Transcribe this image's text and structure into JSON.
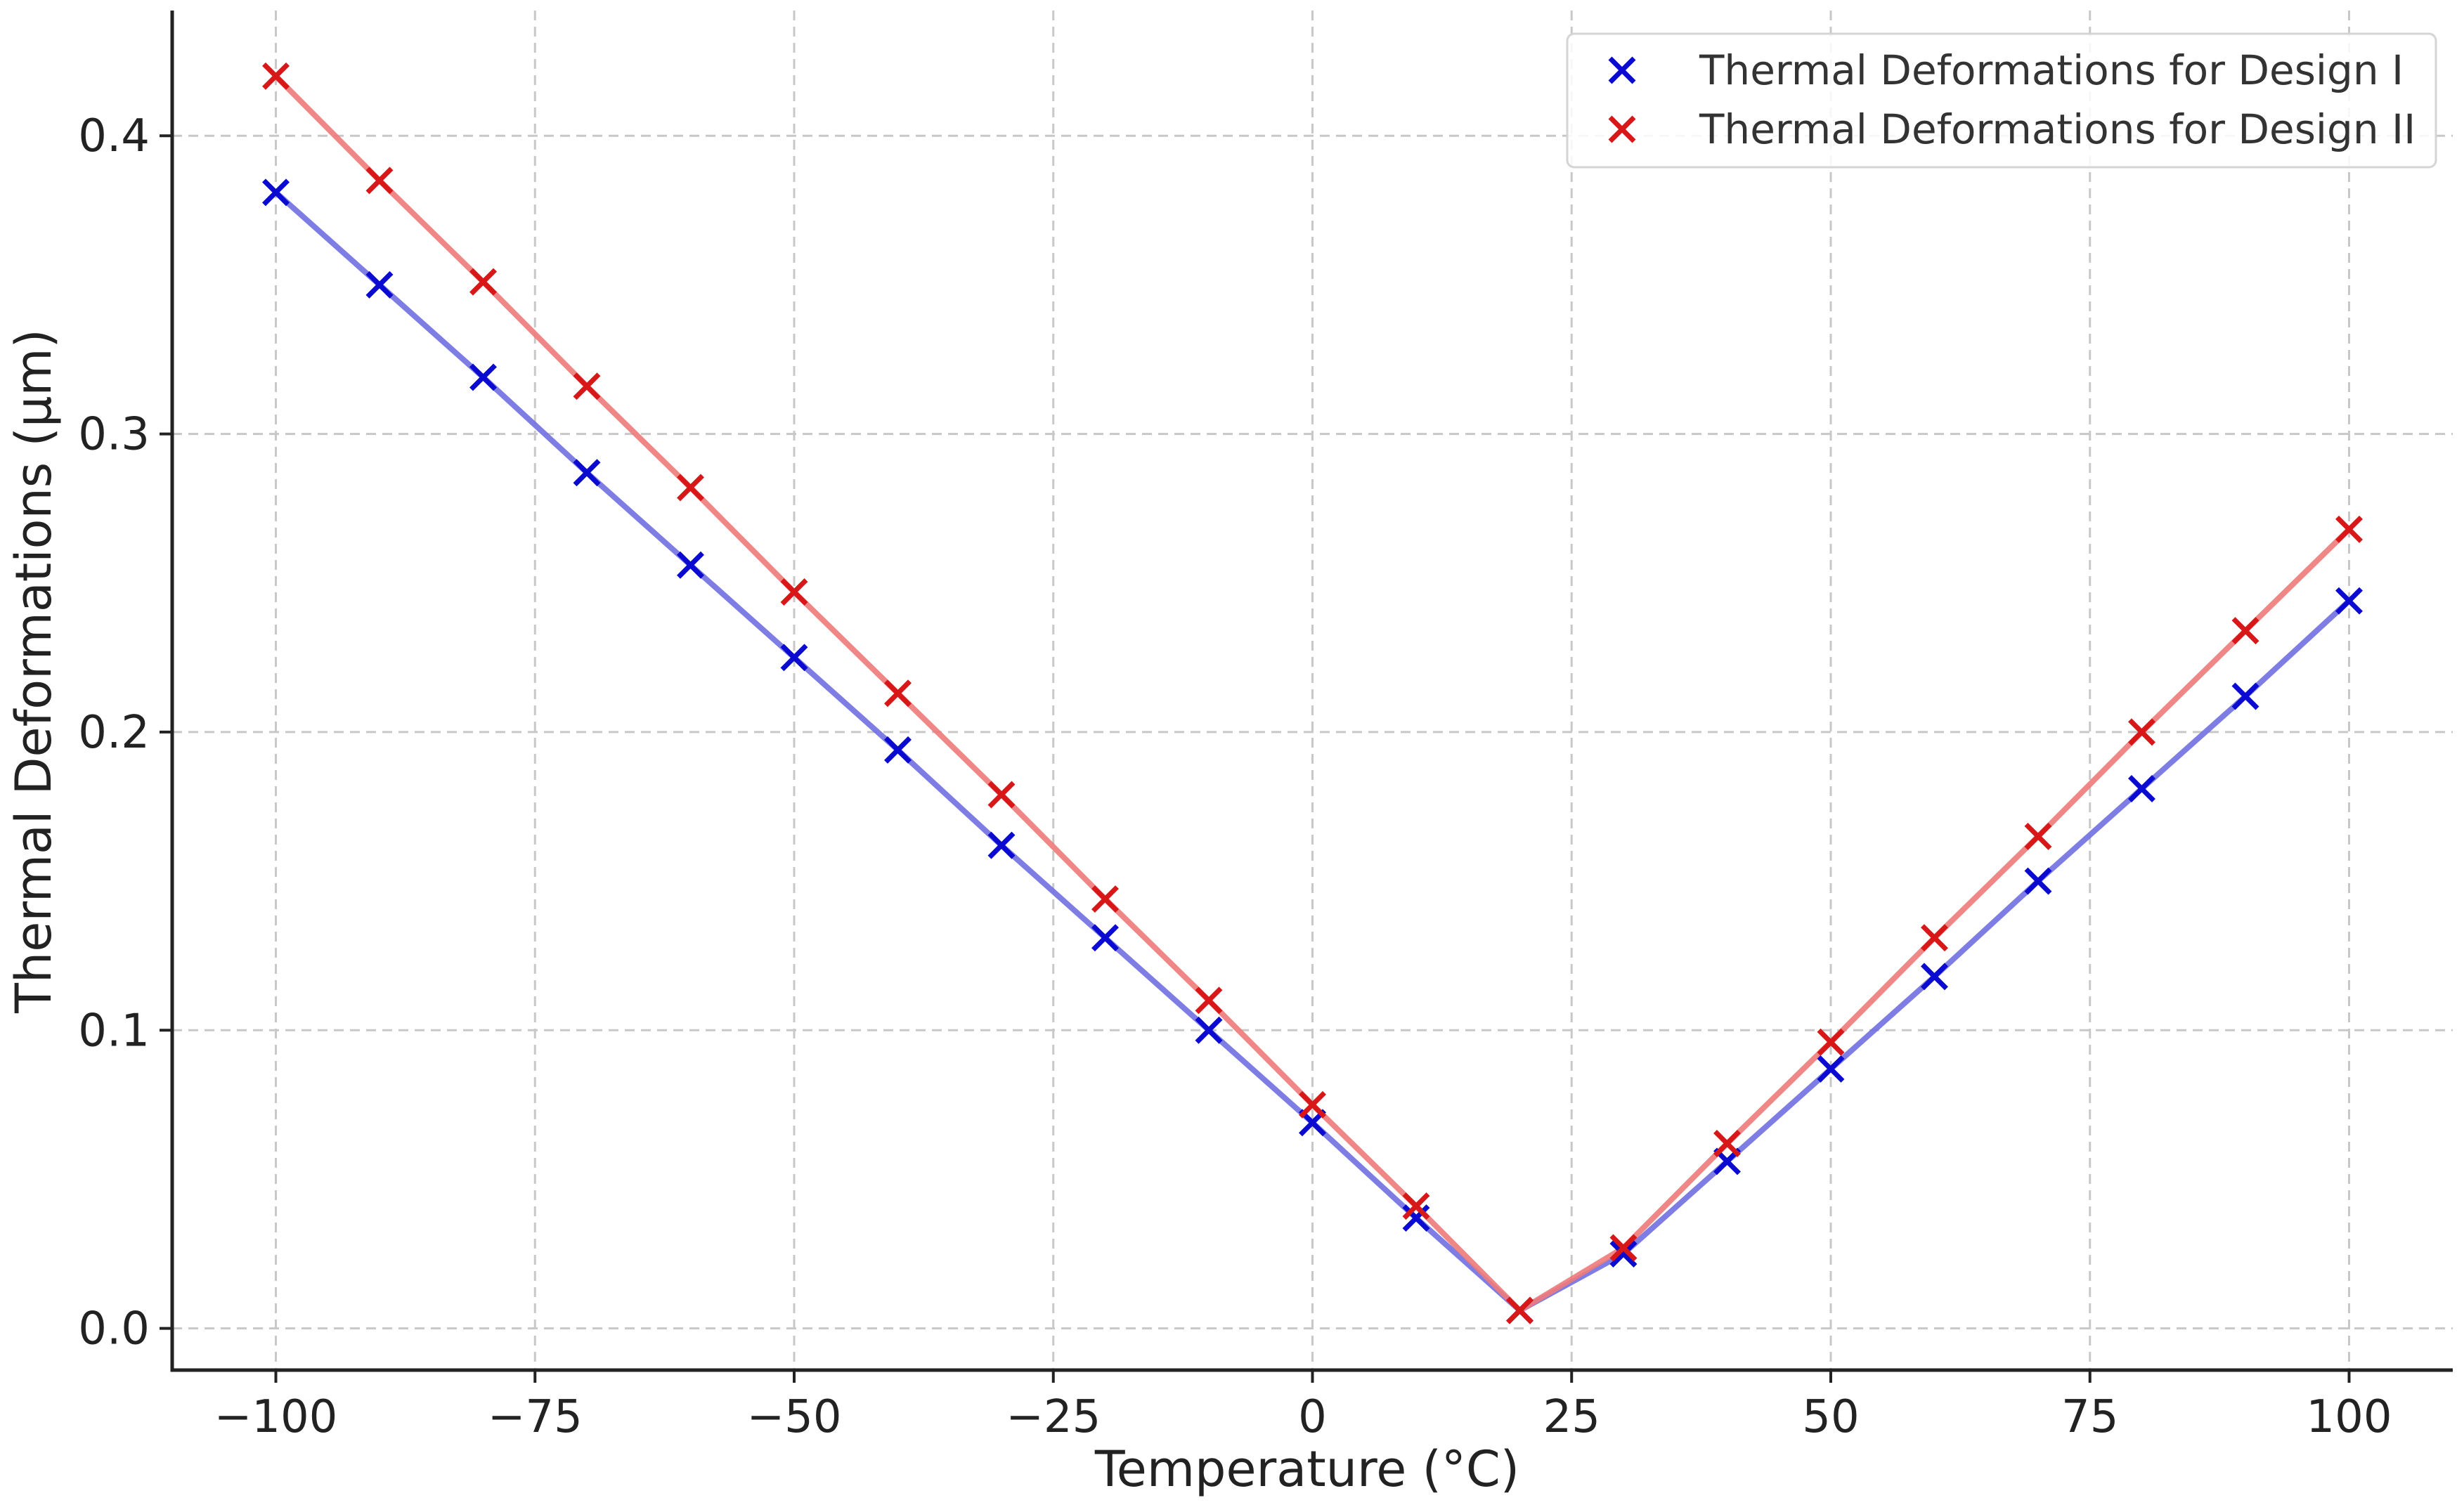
{
  "chart_data": {
    "type": "line",
    "title": "",
    "xlabel": "Temperature (°C)",
    "ylabel": "Thermal Deformations (μm)",
    "xlim": [
      -110,
      110
    ],
    "ylim": [
      -0.014,
      0.442
    ],
    "x_ticks": [
      -100,
      -75,
      -50,
      -25,
      0,
      25,
      50,
      75,
      100
    ],
    "x_tick_labels": [
      "−100",
      "−75",
      "−50",
      "−25",
      "0",
      "25",
      "50",
      "75",
      "100"
    ],
    "y_ticks": [
      0.0,
      0.1,
      0.2,
      0.3,
      0.4
    ],
    "y_tick_labels": [
      "0.0",
      "0.1",
      "0.2",
      "0.3",
      "0.4"
    ],
    "grid": true,
    "legend_position": "top-right",
    "x": [
      -100,
      -90,
      -80,
      -70,
      -60,
      -50,
      -40,
      -30,
      -20,
      -10,
      0,
      10,
      20,
      30,
      40,
      50,
      60,
      70,
      80,
      90,
      100
    ],
    "series": [
      {
        "name": "Thermal Deformations for Design I",
        "color": "#0a0ad0",
        "line_color": "#6f6fe0",
        "values": [
          0.381,
          0.35,
          0.319,
          0.287,
          0.256,
          0.225,
          0.194,
          0.162,
          0.131,
          0.1,
          0.069,
          0.037,
          0.006,
          0.025,
          0.056,
          0.087,
          0.118,
          0.15,
          0.181,
          0.212,
          0.244
        ]
      },
      {
        "name": "Thermal Deformations for Design II",
        "color": "#d81818",
        "line_color": "#ee7a7a",
        "values": [
          0.42,
          0.385,
          0.351,
          0.316,
          0.282,
          0.247,
          0.213,
          0.179,
          0.144,
          0.11,
          0.075,
          0.041,
          0.006,
          0.027,
          0.062,
          0.096,
          0.131,
          0.165,
          0.2,
          0.234,
          0.268
        ]
      }
    ]
  }
}
